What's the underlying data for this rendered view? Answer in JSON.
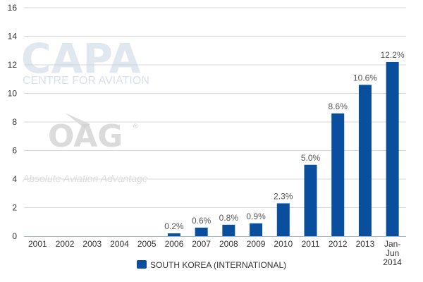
{
  "chart_data": {
    "type": "bar",
    "categories": [
      "2001",
      "2002",
      "2003",
      "2004",
      "2005",
      "2006",
      "2007",
      "2008",
      "2009",
      "2010",
      "2011",
      "2012",
      "2013",
      "Jan-Jun 2014"
    ],
    "category_lines": [
      [
        "2001"
      ],
      [
        "2002"
      ],
      [
        "2003"
      ],
      [
        "2004"
      ],
      [
        "2005"
      ],
      [
        "2006"
      ],
      [
        "2007"
      ],
      [
        "2008"
      ],
      [
        "2009"
      ],
      [
        "2010"
      ],
      [
        "2011"
      ],
      [
        "2012"
      ],
      [
        "2013"
      ],
      [
        "Jan-",
        "Jun",
        "2014"
      ]
    ],
    "series": [
      {
        "name": "SOUTH KOREA (INTERNATIONAL)",
        "color": "#0a4f9e",
        "values": [
          0,
          0,
          0,
          0,
          0,
          0.2,
          0.6,
          0.8,
          0.9,
          2.3,
          5.0,
          8.6,
          10.6,
          12.2
        ],
        "labels": [
          "",
          "",
          "",
          "",
          "",
          "0.2%",
          "0.6%",
          "0.8%",
          "0.9%",
          "2.3%",
          "5.0%",
          "8.6%",
          "10.6%",
          "12.2%"
        ]
      }
    ],
    "ylim": [
      0,
      16
    ],
    "yticks": [
      0,
      2,
      4,
      6,
      8,
      10,
      12,
      14,
      16
    ],
    "grid": true,
    "legend": "bottom-center",
    "title": "",
    "xlabel": "",
    "ylabel": ""
  },
  "watermark": {
    "capa": "CAPA",
    "capa_sub": "CENTRE FOR AVIATION",
    "oag": "OAG",
    "oag_mark": "®",
    "oag_tagline": "Absolute Aviation Advantage"
  }
}
